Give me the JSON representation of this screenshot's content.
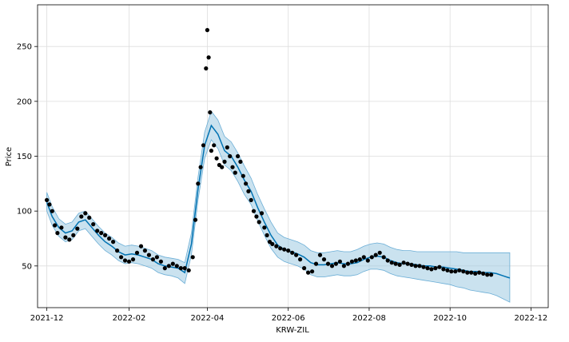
{
  "chart_data": {
    "type": "line",
    "title": "",
    "xlabel": "KRW-ZIL",
    "ylabel": "Price",
    "x_ticks": [
      "2021-12",
      "2022-02",
      "2022-04",
      "2022-06",
      "2022-08",
      "2022-10",
      "2022-12"
    ],
    "y_ticks": [
      50,
      100,
      150,
      200,
      250
    ],
    "xlim": [
      "2021-11-24",
      "2022-12-14"
    ],
    "ylim": [
      12,
      288
    ],
    "grid": true,
    "colors": {
      "observed": "#000000",
      "forecast": "#0072B2",
      "interval_fill": "#9ecae1",
      "interval_edge": "#6baed6",
      "grid": "#dddddd"
    },
    "series": [
      {
        "name": "",
        "kind": "forecast",
        "x": [
          "2021-12-01",
          "2021-12-05",
          "2021-12-10",
          "2021-12-15",
          "2021-12-20",
          "2021-12-25",
          "2021-12-30",
          "2022-01-04",
          "2022-01-09",
          "2022-01-14",
          "2022-01-19",
          "2022-01-24",
          "2022-01-29",
          "2022-02-03",
          "2022-02-08",
          "2022-02-13",
          "2022-02-18",
          "2022-02-23",
          "2022-02-28",
          "2022-03-05",
          "2022-03-10",
          "2022-03-15",
          "2022-03-20",
          "2022-03-25",
          "2022-03-30",
          "2022-04-04",
          "2022-04-09",
          "2022-04-14",
          "2022-04-19",
          "2022-04-24",
          "2022-04-29",
          "2022-05-04",
          "2022-05-09",
          "2022-05-14",
          "2022-05-19",
          "2022-05-24",
          "2022-05-29",
          "2022-06-03",
          "2022-06-08",
          "2022-06-13",
          "2022-06-18",
          "2022-06-23",
          "2022-06-28",
          "2022-07-03",
          "2022-07-08",
          "2022-07-13",
          "2022-07-18",
          "2022-07-23",
          "2022-07-28",
          "2022-08-02",
          "2022-08-07",
          "2022-08-12",
          "2022-08-17",
          "2022-08-22",
          "2022-08-27",
          "2022-09-01",
          "2022-09-06",
          "2022-09-11",
          "2022-09-16",
          "2022-09-21",
          "2022-09-26",
          "2022-10-01",
          "2022-10-06",
          "2022-10-11",
          "2022-10-16",
          "2022-10-21",
          "2022-10-26",
          "2022-10-31",
          "2022-11-05",
          "2022-11-10",
          "2022-11-15"
        ],
        "y": [
          108,
          95,
          85,
          80,
          82,
          90,
          92,
          85,
          78,
          72,
          68,
          63,
          60,
          61,
          60,
          58,
          56,
          52,
          50,
          49,
          48,
          44,
          70,
          120,
          160,
          178,
          170,
          155,
          150,
          140,
          128,
          118,
          103,
          90,
          78,
          69,
          65,
          63,
          61,
          58,
          53,
          51,
          51,
          52,
          53,
          52,
          52,
          53,
          56,
          58,
          59,
          58,
          55,
          53,
          52,
          52,
          51,
          50,
          50,
          49,
          49,
          48,
          47,
          46,
          45,
          45,
          44,
          44,
          43,
          41,
          39
        ],
        "lower": [
          100,
          87,
          77,
          72,
          74,
          82,
          84,
          77,
          70,
          64,
          60,
          55,
          52,
          53,
          52,
          50,
          48,
          44,
          42,
          41,
          39,
          34,
          60,
          110,
          148,
          165,
          157,
          142,
          137,
          127,
          115,
          106,
          91,
          78,
          66,
          58,
          54,
          52,
          50,
          47,
          42,
          40,
          40,
          41,
          42,
          41,
          41,
          42,
          45,
          47,
          47,
          46,
          43,
          41,
          40,
          39,
          38,
          37,
          36,
          35,
          34,
          33,
          31,
          30,
          28,
          27,
          26,
          25,
          23,
          20,
          17
        ],
        "upper": [
          117,
          104,
          93,
          88,
          90,
          98,
          100,
          93,
          86,
          80,
          76,
          71,
          68,
          69,
          68,
          66,
          64,
          60,
          58,
          57,
          56,
          53,
          80,
          131,
          172,
          191,
          183,
          168,
          163,
          153,
          141,
          130,
          115,
          102,
          90,
          80,
          76,
          74,
          72,
          69,
          64,
          62,
          62,
          63,
          64,
          63,
          63,
          65,
          68,
          70,
          71,
          70,
          67,
          65,
          64,
          64,
          63,
          63,
          63,
          63,
          63,
          63,
          63,
          62,
          62,
          62,
          62,
          62,
          62,
          62,
          62
        ]
      },
      {
        "name": "",
        "kind": "observed",
        "x": [
          "2021-12-01",
          "2021-12-03",
          "2021-12-05",
          "2021-12-07",
          "2021-12-09",
          "2021-12-12",
          "2021-12-15",
          "2021-12-18",
          "2021-12-21",
          "2021-12-24",
          "2021-12-27",
          "2021-12-30",
          "2022-01-02",
          "2022-01-05",
          "2022-01-08",
          "2022-01-11",
          "2022-01-14",
          "2022-01-17",
          "2022-01-20",
          "2022-01-23",
          "2022-01-26",
          "2022-01-29",
          "2022-02-01",
          "2022-02-04",
          "2022-02-07",
          "2022-02-10",
          "2022-02-13",
          "2022-02-16",
          "2022-02-19",
          "2022-02-22",
          "2022-02-25",
          "2022-02-28",
          "2022-03-03",
          "2022-03-06",
          "2022-03-09",
          "2022-03-12",
          "2022-03-15",
          "2022-03-18",
          "2022-03-21",
          "2022-03-23",
          "2022-03-25",
          "2022-03-27",
          "2022-03-29",
          "2022-03-31",
          "2022-04-01",
          "2022-04-02",
          "2022-04-03",
          "2022-04-04",
          "2022-04-06",
          "2022-04-08",
          "2022-04-10",
          "2022-04-12",
          "2022-04-14",
          "2022-04-16",
          "2022-04-18",
          "2022-04-20",
          "2022-04-22",
          "2022-04-24",
          "2022-04-26",
          "2022-04-28",
          "2022-04-30",
          "2022-05-02",
          "2022-05-04",
          "2022-05-06",
          "2022-05-08",
          "2022-05-10",
          "2022-05-12",
          "2022-05-14",
          "2022-05-16",
          "2022-05-18",
          "2022-05-20",
          "2022-05-23",
          "2022-05-26",
          "2022-05-29",
          "2022-06-01",
          "2022-06-04",
          "2022-06-07",
          "2022-06-10",
          "2022-06-13",
          "2022-06-16",
          "2022-06-19",
          "2022-06-22",
          "2022-06-25",
          "2022-06-28",
          "2022-07-01",
          "2022-07-04",
          "2022-07-07",
          "2022-07-10",
          "2022-07-13",
          "2022-07-16",
          "2022-07-19",
          "2022-07-22",
          "2022-07-25",
          "2022-07-28",
          "2022-07-31",
          "2022-08-03",
          "2022-08-06",
          "2022-08-09",
          "2022-08-12",
          "2022-08-15",
          "2022-08-18",
          "2022-08-21",
          "2022-08-24",
          "2022-08-27",
          "2022-08-30",
          "2022-09-02",
          "2022-09-05",
          "2022-09-08",
          "2022-09-11",
          "2022-09-14",
          "2022-09-17",
          "2022-09-20",
          "2022-09-23",
          "2022-09-26",
          "2022-09-29",
          "2022-10-02",
          "2022-10-05",
          "2022-10-08",
          "2022-10-11",
          "2022-10-14",
          "2022-10-17",
          "2022-10-20",
          "2022-10-23",
          "2022-10-26",
          "2022-10-29",
          "2022-11-01"
        ],
        "y": [
          110,
          106,
          100,
          87,
          80,
          85,
          76,
          74,
          78,
          84,
          95,
          98,
          94,
          88,
          82,
          80,
          78,
          75,
          72,
          64,
          58,
          55,
          54,
          56,
          62,
          68,
          64,
          60,
          56,
          58,
          54,
          48,
          50,
          52,
          50,
          48,
          48,
          46,
          58,
          92,
          125,
          140,
          160,
          230,
          265,
          240,
          190,
          155,
          160,
          148,
          142,
          140,
          145,
          158,
          150,
          140,
          135,
          150,
          145,
          132,
          125,
          118,
          110,
          100,
          95,
          90,
          98,
          85,
          78,
          72,
          70,
          68,
          66,
          65,
          64,
          62,
          60,
          56,
          48,
          44,
          45,
          52,
          60,
          56,
          52,
          50,
          52,
          54,
          50,
          52,
          54,
          55,
          56,
          58,
          55,
          58,
          60,
          62,
          58,
          55,
          53,
          52,
          51,
          53,
          52,
          51,
          50,
          50,
          49,
          48,
          47,
          48,
          49,
          47,
          46,
          45,
          45,
          46,
          45,
          44,
          44,
          43,
          44,
          43,
          42,
          42
        ]
      }
    ]
  }
}
